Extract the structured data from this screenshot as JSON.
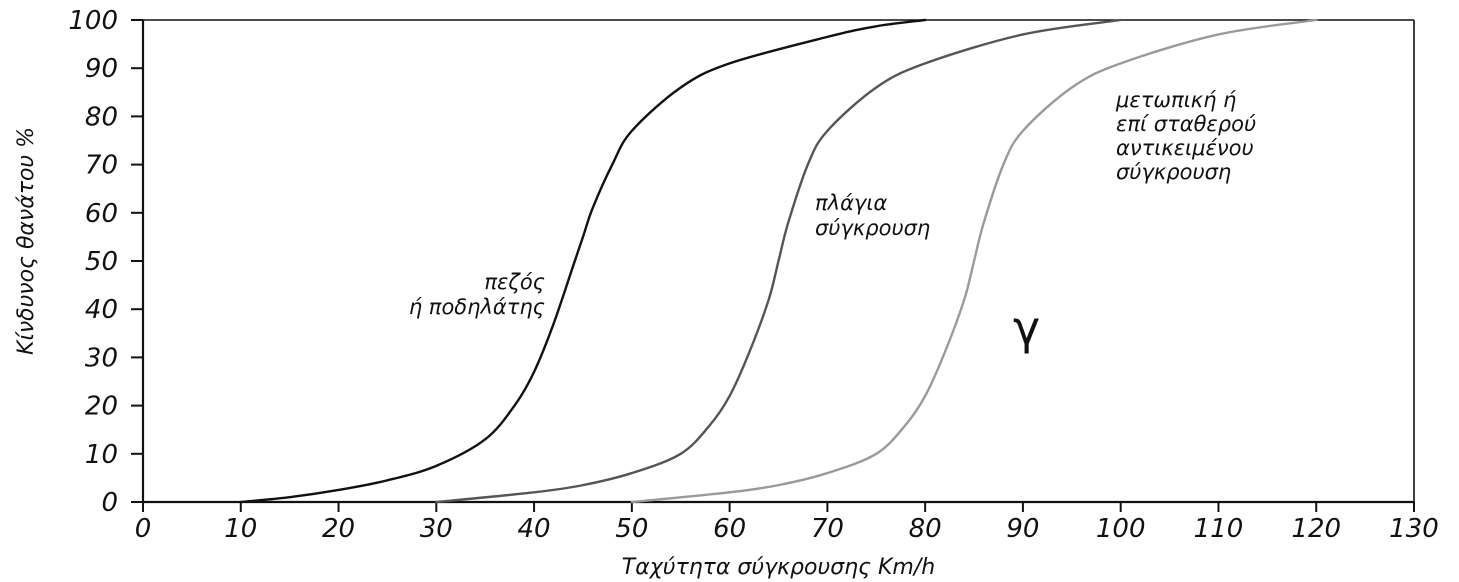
{
  "chart_data": {
    "type": "line",
    "xlabel": "Ταχύτητα σύγκρουσης Km/h",
    "ylabel": "Κίνδυνος θανάτου %",
    "xlim": [
      0,
      130
    ],
    "ylim": [
      0,
      100
    ],
    "xticks": [
      0,
      10,
      20,
      30,
      40,
      50,
      60,
      70,
      80,
      90,
      100,
      110,
      120,
      130
    ],
    "yticks": [
      0,
      10,
      20,
      30,
      40,
      50,
      60,
      70,
      80,
      90,
      100
    ],
    "grid": false,
    "legend": "none",
    "panel_label": "γ",
    "series": [
      {
        "label_lines": [
          "πεζός",
          "ή ποδηλάτης"
        ],
        "color": "#111111",
        "points": [
          [
            10,
            0
          ],
          [
            15,
            1
          ],
          [
            20,
            2.5
          ],
          [
            25,
            4.5
          ],
          [
            30,
            7.5
          ],
          [
            35,
            13
          ],
          [
            38,
            20
          ],
          [
            40,
            27
          ],
          [
            42,
            37
          ],
          [
            44,
            49
          ],
          [
            45,
            55
          ],
          [
            46,
            61
          ],
          [
            48,
            70
          ],
          [
            50,
            77
          ],
          [
            55,
            86
          ],
          [
            60,
            91
          ],
          [
            70,
            96.5
          ],
          [
            75,
            98.7
          ],
          [
            80,
            100
          ]
        ]
      },
      {
        "label_lines": [
          "πλάγια",
          "σύγκρουση"
        ],
        "color": "#555555",
        "points": [
          [
            30,
            0
          ],
          [
            40,
            2
          ],
          [
            45,
            3.5
          ],
          [
            50,
            6
          ],
          [
            55,
            10
          ],
          [
            58,
            16
          ],
          [
            60,
            22
          ],
          [
            62,
            31
          ],
          [
            64,
            42
          ],
          [
            65,
            50
          ],
          [
            66,
            58
          ],
          [
            68,
            70
          ],
          [
            70,
            77
          ],
          [
            75,
            86
          ],
          [
            80,
            91
          ],
          [
            90,
            97
          ],
          [
            100,
            100
          ]
        ]
      },
      {
        "label_lines": [
          "μετωπική ή",
          "επί σταθερού",
          "αντικειμένου",
          "σύγκρουση"
        ],
        "color": "#9a9a9a",
        "points": [
          [
            50,
            0
          ],
          [
            60,
            2
          ],
          [
            65,
            3.5
          ],
          [
            70,
            6
          ],
          [
            75,
            10
          ],
          [
            78,
            16
          ],
          [
            80,
            22
          ],
          [
            82,
            31
          ],
          [
            84,
            42
          ],
          [
            85,
            50
          ],
          [
            86,
            58
          ],
          [
            88,
            70
          ],
          [
            90,
            77
          ],
          [
            95,
            86
          ],
          [
            100,
            91
          ],
          [
            110,
            97
          ],
          [
            120,
            100
          ]
        ]
      }
    ]
  }
}
